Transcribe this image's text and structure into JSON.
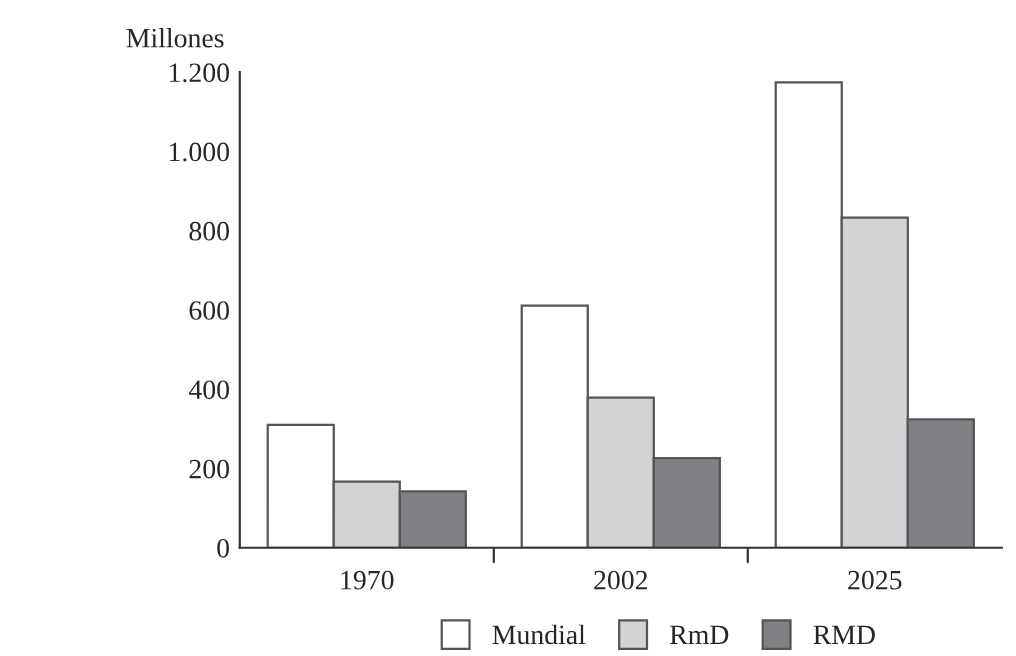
{
  "chart_data": {
    "type": "bar",
    "ylabel": "Millones",
    "categories": [
      "1970",
      "2002",
      "2025"
    ],
    "series": [
      {
        "name": "Mundial",
        "color": "#ffffff",
        "values": [
          310,
          611,
          1174
        ]
      },
      {
        "name": "RmD",
        "color": "#d2d3d5",
        "values": [
          167,
          379,
          833
        ]
      },
      {
        "name": "RMD",
        "color": "#808184",
        "values": [
          142,
          226,
          324
        ]
      }
    ],
    "ylim": [
      0,
      1200
    ],
    "yticks": [
      0,
      200,
      400,
      600,
      800,
      {
        "value": 1000,
        "label": "1.000"
      },
      {
        "value": 1200,
        "label": "1.200"
      }
    ],
    "grid": false,
    "legend": "bottom"
  }
}
